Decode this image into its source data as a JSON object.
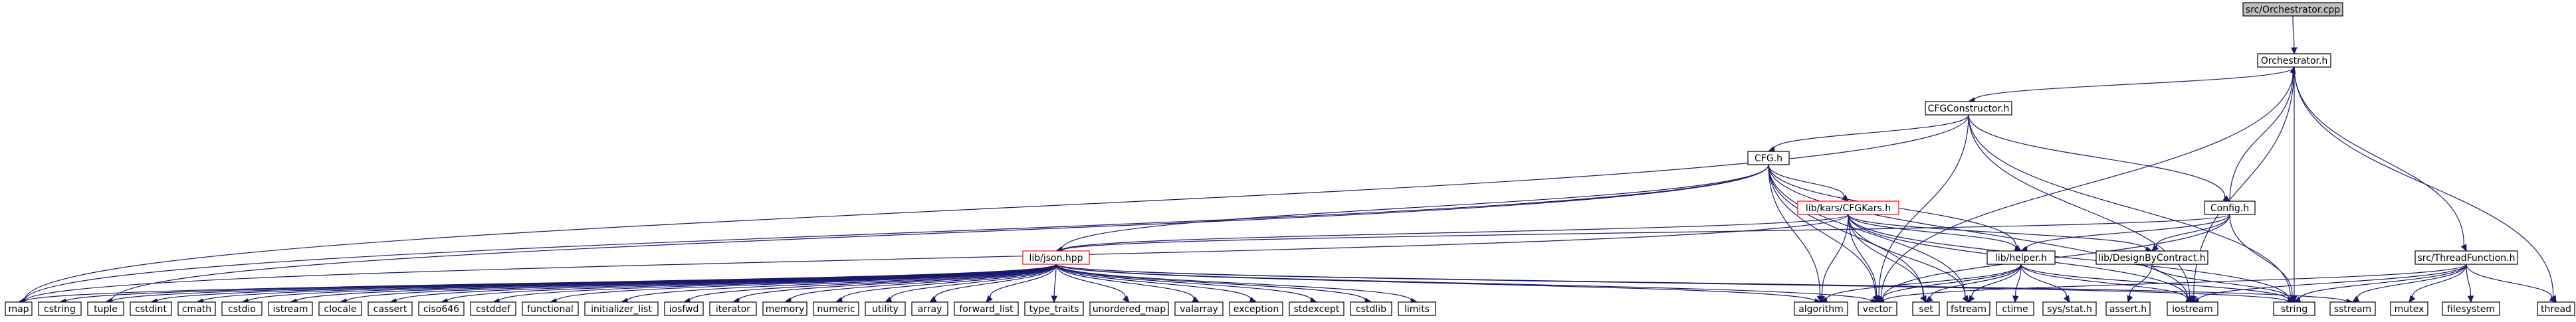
{
  "graph": {
    "root": "src/Orchestrator.cpp",
    "colors": {
      "edge": "#191970",
      "root_fill": "#bfbfbf",
      "node_border": "#000000",
      "incomplete_border": "#ff0000"
    },
    "nodes": [
      {
        "id": "root",
        "label": "src/Orchestrator.cpp",
        "style": "root"
      },
      {
        "id": "orch",
        "label": "Orchestrator.h"
      },
      {
        "id": "cfgc",
        "label": "CFGConstructor.h"
      },
      {
        "id": "cfg",
        "label": "CFG.h"
      },
      {
        "id": "cfgkars",
        "label": "lib/kars/CFGKars.h",
        "style": "incomplete"
      },
      {
        "id": "config",
        "label": "Config.h"
      },
      {
        "id": "json",
        "label": "lib/json.hpp",
        "style": "incomplete"
      },
      {
        "id": "helper",
        "label": "lib/helper.h"
      },
      {
        "id": "dbc",
        "label": "lib/DesignByContract.h"
      },
      {
        "id": "thread",
        "label": "src/ThreadFunction.h"
      },
      {
        "id": "map",
        "label": "map"
      },
      {
        "id": "cstring",
        "label": "cstring"
      },
      {
        "id": "tuple",
        "label": "tuple"
      },
      {
        "id": "cstdint",
        "label": "cstdint"
      },
      {
        "id": "cmath",
        "label": "cmath"
      },
      {
        "id": "cstdio",
        "label": "cstdio"
      },
      {
        "id": "istream",
        "label": "istream"
      },
      {
        "id": "clocale",
        "label": "clocale"
      },
      {
        "id": "cassert",
        "label": "cassert"
      },
      {
        "id": "ciso646",
        "label": "ciso646"
      },
      {
        "id": "cstddef",
        "label": "cstddef"
      },
      {
        "id": "functional",
        "label": "functional"
      },
      {
        "id": "initializer_list",
        "label": "initializer_list"
      },
      {
        "id": "iosfwd",
        "label": "iosfwd"
      },
      {
        "id": "iterator",
        "label": "iterator"
      },
      {
        "id": "memory",
        "label": "memory"
      },
      {
        "id": "numeric",
        "label": "numeric"
      },
      {
        "id": "utility",
        "label": "utility"
      },
      {
        "id": "array",
        "label": "array"
      },
      {
        "id": "forward_list",
        "label": "forward_list"
      },
      {
        "id": "type_traits",
        "label": "type_traits"
      },
      {
        "id": "unordered_map",
        "label": "unordered_map"
      },
      {
        "id": "valarray",
        "label": "valarray"
      },
      {
        "id": "exception",
        "label": "exception"
      },
      {
        "id": "stdexcept",
        "label": "stdexcept"
      },
      {
        "id": "cstdlib",
        "label": "cstdlib"
      },
      {
        "id": "limits",
        "label": "limits"
      },
      {
        "id": "algorithm",
        "label": "algorithm"
      },
      {
        "id": "vector",
        "label": "vector"
      },
      {
        "id": "set",
        "label": "set"
      },
      {
        "id": "fstream",
        "label": "fstream"
      },
      {
        "id": "ctime",
        "label": "ctime"
      },
      {
        "id": "sysstat",
        "label": "sys/stat.h"
      },
      {
        "id": "asserth",
        "label": "assert.h"
      },
      {
        "id": "iostream",
        "label": "iostream"
      },
      {
        "id": "string",
        "label": "string"
      },
      {
        "id": "sstream",
        "label": "sstream"
      },
      {
        "id": "mutex",
        "label": "mutex"
      },
      {
        "id": "filesystem",
        "label": "filesystem"
      },
      {
        "id": "threadh",
        "label": "thread"
      }
    ],
    "edges": [
      [
        "root",
        "orch"
      ],
      [
        "orch",
        "cfgc"
      ],
      [
        "orch",
        "thread"
      ],
      [
        "orch",
        "threadh"
      ],
      [
        "orch",
        "iostream"
      ],
      [
        "orch",
        "string"
      ],
      [
        "orch",
        "vector"
      ],
      [
        "cfgc",
        "cfg"
      ],
      [
        "cfgc",
        "config"
      ],
      [
        "cfgc",
        "map"
      ],
      [
        "cfgc",
        "vector"
      ],
      [
        "cfgc",
        "string"
      ],
      [
        "cfgc",
        "iostream"
      ],
      [
        "cfg",
        "cfgkars"
      ],
      [
        "cfg",
        "json"
      ],
      [
        "cfg",
        "helper"
      ],
      [
        "cfg",
        "vector"
      ],
      [
        "cfg",
        "set"
      ],
      [
        "cfg",
        "map"
      ],
      [
        "cfg",
        "fstream"
      ],
      [
        "cfg",
        "iostream"
      ],
      [
        "cfg",
        "algorithm"
      ],
      [
        "cfg",
        "tuple"
      ],
      [
        "cfgkars",
        "json"
      ],
      [
        "cfgkars",
        "helper"
      ],
      [
        "cfgkars",
        "dbc"
      ],
      [
        "cfgkars",
        "vector"
      ],
      [
        "cfgkars",
        "set"
      ],
      [
        "cfgkars",
        "fstream"
      ],
      [
        "cfgkars",
        "string"
      ],
      [
        "cfgkars",
        "algorithm"
      ],
      [
        "cfgkars",
        "iostream"
      ],
      [
        "cfgkars",
        "map"
      ],
      [
        "config",
        "orch"
      ],
      [
        "config",
        "json"
      ],
      [
        "config",
        "helper"
      ],
      [
        "config",
        "dbc"
      ],
      [
        "config",
        "string"
      ],
      [
        "config",
        "vector"
      ],
      [
        "json",
        "map"
      ],
      [
        "json",
        "cstring"
      ],
      [
        "json",
        "tuple"
      ],
      [
        "json",
        "cstdint"
      ],
      [
        "json",
        "cmath"
      ],
      [
        "json",
        "cstdio"
      ],
      [
        "json",
        "istream"
      ],
      [
        "json",
        "clocale"
      ],
      [
        "json",
        "cassert"
      ],
      [
        "json",
        "ciso646"
      ],
      [
        "json",
        "cstddef"
      ],
      [
        "json",
        "functional"
      ],
      [
        "json",
        "initializer_list"
      ],
      [
        "json",
        "iosfwd"
      ],
      [
        "json",
        "iterator"
      ],
      [
        "json",
        "memory"
      ],
      [
        "json",
        "numeric"
      ],
      [
        "json",
        "utility"
      ],
      [
        "json",
        "array"
      ],
      [
        "json",
        "forward_list"
      ],
      [
        "json",
        "type_traits"
      ],
      [
        "json",
        "unordered_map"
      ],
      [
        "json",
        "valarray"
      ],
      [
        "json",
        "exception"
      ],
      [
        "json",
        "stdexcept"
      ],
      [
        "json",
        "cstdlib"
      ],
      [
        "json",
        "limits"
      ],
      [
        "json",
        "algorithm"
      ],
      [
        "json",
        "vector"
      ],
      [
        "json",
        "string"
      ],
      [
        "json",
        "sstream"
      ],
      [
        "helper",
        "vector"
      ],
      [
        "helper",
        "set"
      ],
      [
        "helper",
        "fstream"
      ],
      [
        "helper",
        "ctime"
      ],
      [
        "helper",
        "sysstat"
      ],
      [
        "helper",
        "iostream"
      ],
      [
        "helper",
        "string"
      ],
      [
        "helper",
        "algorithm"
      ],
      [
        "dbc",
        "asserth"
      ],
      [
        "dbc",
        "string"
      ],
      [
        "thread",
        "sstream"
      ],
      [
        "thread",
        "mutex"
      ],
      [
        "thread",
        "filesystem"
      ],
      [
        "thread",
        "threadh"
      ],
      [
        "thread",
        "iostream"
      ],
      [
        "thread",
        "string"
      ],
      [
        "thread",
        "vector"
      ]
    ]
  }
}
